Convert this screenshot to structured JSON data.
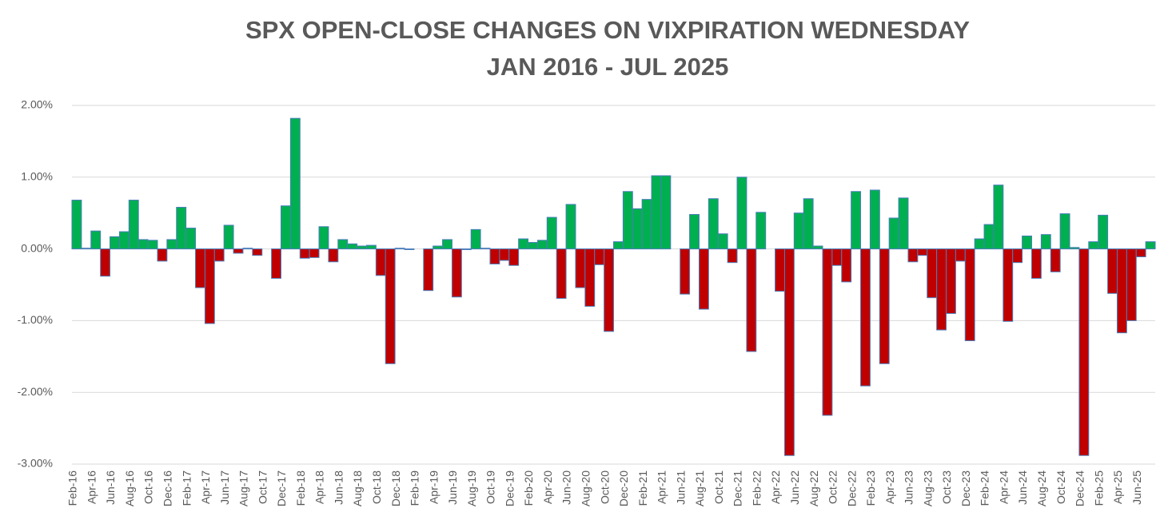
{
  "chart_data": {
    "type": "bar",
    "title": "SPX OPEN-CLOSE CHANGES ON VIXPIRATION WEDNESDAY",
    "subtitle": "JAN 2016 - JUL 2025",
    "categories": [
      "Feb-16",
      null,
      "Apr-16",
      null,
      "Jun-16",
      null,
      "Aug-16",
      null,
      "Oct-16",
      null,
      "Dec-16",
      null,
      "Feb-17",
      null,
      "Apr-17",
      null,
      "Jun-17",
      null,
      "Aug-17",
      null,
      "Oct-17",
      null,
      "Dec-17",
      null,
      "Feb-18",
      null,
      "Apr-18",
      null,
      "Jun-18",
      null,
      "Aug-18",
      null,
      "Oct-18",
      null,
      "Dec-18",
      null,
      "Feb-19",
      null,
      "Apr-19",
      null,
      "Jun-19",
      null,
      "Aug-19",
      null,
      "Oct-19",
      null,
      "Dec-19",
      null,
      "Feb-20",
      null,
      "Apr-20",
      null,
      "Jun-20",
      null,
      "Aug-20",
      null,
      "Oct-20",
      null,
      "Dec-20",
      null,
      "Feb-21",
      null,
      "Apr-21",
      null,
      "Jun-21",
      null,
      "Aug-21",
      null,
      "Oct-21",
      null,
      "Dec-21",
      null,
      "Feb-22",
      null,
      "Apr-22",
      null,
      "Jun-22",
      null,
      "Aug-22",
      null,
      "Oct-22",
      null,
      "Dec-22",
      null,
      "Feb-23",
      null,
      "Apr-23",
      null,
      "Jun-23",
      null,
      "Aug-23",
      null,
      "Oct-23",
      null,
      "Dec-23",
      null,
      "Feb-24",
      null,
      "Apr-24",
      null,
      "Jun-24",
      null,
      "Aug-24",
      null,
      "Oct-24",
      null,
      "Dec-24",
      null,
      "Feb-25",
      null,
      "Apr-25",
      null,
      "Jun-25",
      null
    ],
    "values": [
      0.68,
      0.01,
      0.25,
      -0.38,
      0.17,
      0.24,
      0.68,
      0.13,
      0.12,
      -0.17,
      0.13,
      0.58,
      0.29,
      -0.54,
      -1.04,
      -0.17,
      0.33,
      -0.06,
      0.01,
      -0.09,
      0,
      -0.41,
      0.6,
      1.82,
      -0.13,
      -0.12,
      0.31,
      -0.18,
      0.13,
      0.07,
      0.04,
      0.05,
      -0.37,
      -1.6,
      0.01,
      -0.01,
      0,
      -0.58,
      0.04,
      0.13,
      -0.67,
      -0.01,
      0.27,
      0.01,
      -0.21,
      -0.16,
      -0.23,
      0.14,
      0.09,
      0.12,
      0.44,
      -0.69,
      0.62,
      -0.54,
      -0.8,
      -0.22,
      -1.15,
      0.1,
      0.8,
      0.56,
      0.69,
      1.02,
      1.02,
      0,
      -0.63,
      0.48,
      -0.84,
      0.7,
      0.21,
      -0.19,
      1.0,
      -1.43,
      0.51,
      0,
      -0.59,
      -2.88,
      0.5,
      0.7,
      0.04,
      -2.32,
      -0.23,
      -0.46,
      0.8,
      -1.91,
      0.82,
      -1.6,
      0.43,
      0.71,
      -0.18,
      -0.09,
      -0.68,
      -1.13,
      -0.9,
      -0.17,
      -1.28,
      0.14,
      0.34,
      0.89,
      -1.01,
      -0.19,
      0.18,
      -0.41,
      0.2,
      -0.32,
      0.49,
      0.02,
      -2.88,
      0.1,
      0.47,
      -0.62,
      -1.17,
      -1.0,
      -0.11,
      0.1
    ],
    "colors": {
      "positive": "#00b050",
      "negative": "#c00000",
      "outline": "#4a7ebb"
    },
    "ylim": [
      -3,
      2
    ],
    "yticks": [
      {
        "value": -3,
        "label": "-3.00%"
      },
      {
        "value": -2,
        "label": "-2.00%"
      },
      {
        "value": -1,
        "label": "-1.00%"
      },
      {
        "value": 0,
        "label": "0.00%"
      },
      {
        "value": 1,
        "label": "1.00%"
      },
      {
        "value": 2,
        "label": "2.00%"
      }
    ],
    "grid": true
  }
}
